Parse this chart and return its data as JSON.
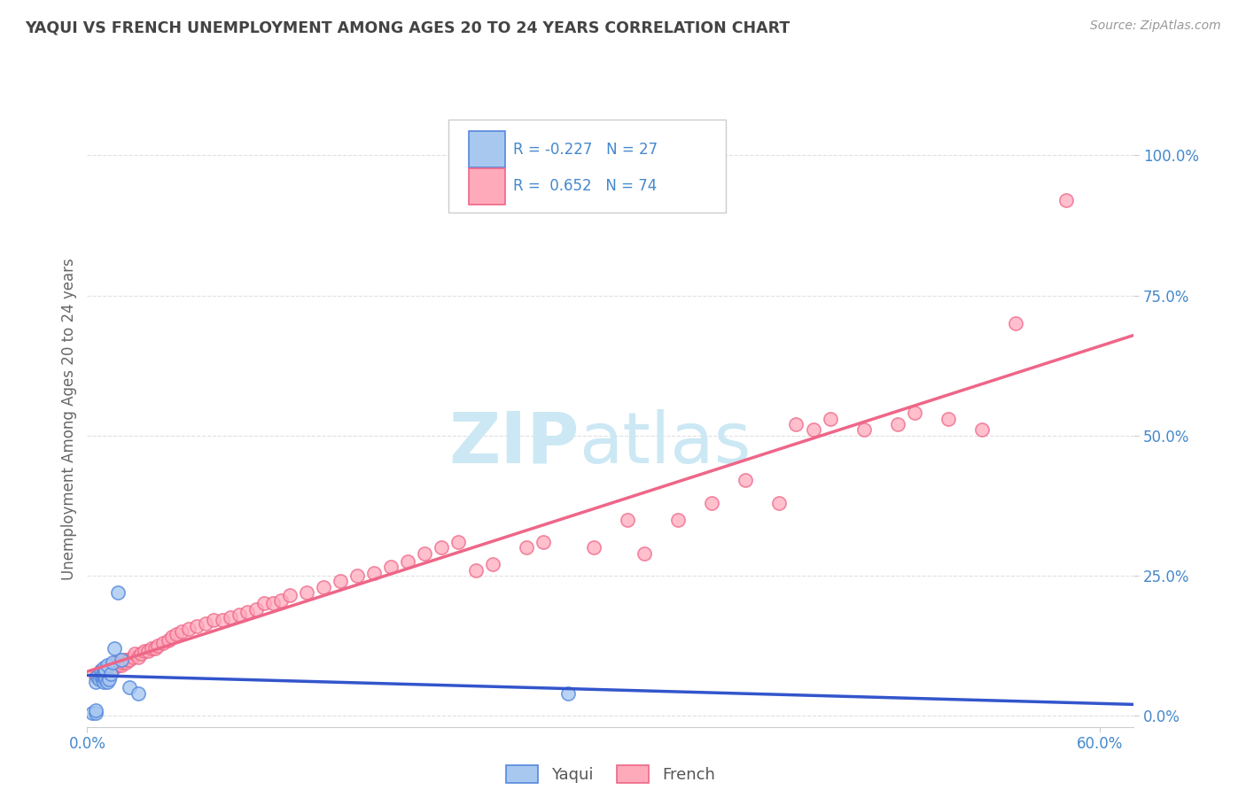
{
  "title": "YAQUI VS FRENCH UNEMPLOYMENT AMONG AGES 20 TO 24 YEARS CORRELATION CHART",
  "source": "Source: ZipAtlas.com",
  "ylabel": "Unemployment Among Ages 20 to 24 years",
  "xlim": [
    0.0,
    0.62
  ],
  "ylim": [
    -0.02,
    1.08
  ],
  "xticks": [
    0.0,
    0.6
  ],
  "xticklabels": [
    "0.0%",
    "60.0%"
  ],
  "ytick_positions": [
    0.0,
    0.25,
    0.5,
    0.75,
    1.0
  ],
  "ytick_labels": [
    "0.0%",
    "25.0%",
    "50.0%",
    "75.0%",
    "100.0%"
  ],
  "yaqui_color": "#a8c8f0",
  "french_color": "#ffaabb",
  "yaqui_edge": "#5588dd",
  "french_edge": "#ee6688",
  "trendline_yaqui_color": "#3355cc",
  "trendline_french_color": "#ee6688",
  "background_color": "#ffffff",
  "grid_color": "#dddddd",
  "watermark_color": "#cce8f4",
  "legend_R_yaqui": "R = -0.227",
  "legend_N_yaqui": "N = 27",
  "legend_R_french": "R =  0.652",
  "legend_N_french": "N = 74",
  "title_color": "#444444",
  "axis_label_color": "#666666",
  "ytick_color": "#4488cc",
  "yaqui_scatter_x": [
    0.003,
    0.005,
    0.005,
    0.005,
    0.006,
    0.007,
    0.008,
    0.008,
    0.009,
    0.009,
    0.01,
    0.01,
    0.01,
    0.01,
    0.011,
    0.011,
    0.012,
    0.012,
    0.013,
    0.014,
    0.015,
    0.016,
    0.018,
    0.02,
    0.025,
    0.03,
    0.285
  ],
  "yaqui_scatter_y": [
    0.005,
    0.005,
    0.01,
    0.06,
    0.07,
    0.065,
    0.07,
    0.08,
    0.065,
    0.075,
    0.06,
    0.07,
    0.075,
    0.085,
    0.065,
    0.08,
    0.06,
    0.09,
    0.065,
    0.075,
    0.095,
    0.12,
    0.22,
    0.1,
    0.05,
    0.04,
    0.04
  ],
  "french_scatter_x": [
    0.005,
    0.008,
    0.01,
    0.012,
    0.013,
    0.014,
    0.015,
    0.016,
    0.017,
    0.018,
    0.02,
    0.021,
    0.022,
    0.023,
    0.024,
    0.025,
    0.027,
    0.028,
    0.03,
    0.032,
    0.034,
    0.036,
    0.038,
    0.04,
    0.042,
    0.045,
    0.048,
    0.05,
    0.053,
    0.056,
    0.06,
    0.065,
    0.07,
    0.075,
    0.08,
    0.085,
    0.09,
    0.095,
    0.1,
    0.105,
    0.11,
    0.115,
    0.12,
    0.13,
    0.14,
    0.15,
    0.16,
    0.17,
    0.18,
    0.19,
    0.2,
    0.21,
    0.22,
    0.23,
    0.24,
    0.26,
    0.27,
    0.3,
    0.32,
    0.33,
    0.35,
    0.37,
    0.39,
    0.41,
    0.42,
    0.43,
    0.44,
    0.46,
    0.48,
    0.49,
    0.51,
    0.53,
    0.55,
    0.58
  ],
  "french_scatter_y": [
    0.07,
    0.08,
    0.08,
    0.075,
    0.085,
    0.08,
    0.09,
    0.085,
    0.095,
    0.09,
    0.09,
    0.095,
    0.1,
    0.095,
    0.1,
    0.1,
    0.105,
    0.11,
    0.105,
    0.11,
    0.115,
    0.115,
    0.12,
    0.12,
    0.125,
    0.13,
    0.135,
    0.14,
    0.145,
    0.15,
    0.155,
    0.16,
    0.165,
    0.17,
    0.17,
    0.175,
    0.18,
    0.185,
    0.19,
    0.2,
    0.2,
    0.205,
    0.215,
    0.22,
    0.23,
    0.24,
    0.25,
    0.255,
    0.265,
    0.275,
    0.29,
    0.3,
    0.31,
    0.26,
    0.27,
    0.3,
    0.31,
    0.3,
    0.35,
    0.29,
    0.35,
    0.38,
    0.42,
    0.38,
    0.52,
    0.51,
    0.53,
    0.51,
    0.52,
    0.54,
    0.53,
    0.51,
    0.7,
    0.92
  ]
}
